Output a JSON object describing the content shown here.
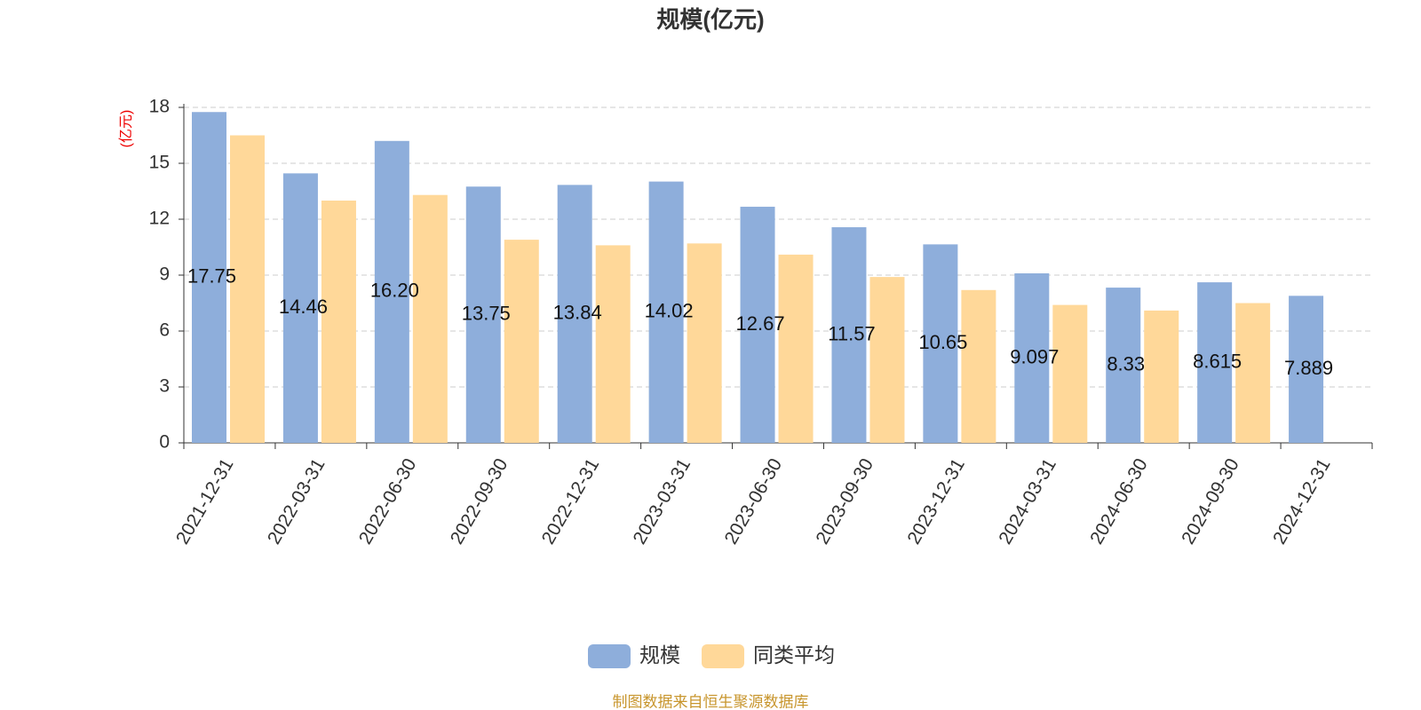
{
  "chart_data": {
    "type": "bar",
    "title": "规模(亿元)",
    "y_axis_label": "(亿元)",
    "categories": [
      "2021-12-31",
      "2022-03-31",
      "2022-06-30",
      "2022-09-30",
      "2022-12-31",
      "2023-03-31",
      "2023-06-30",
      "2023-09-30",
      "2023-12-31",
      "2024-03-31",
      "2024-06-30",
      "2024-09-30",
      "2024-12-31"
    ],
    "series": [
      {
        "name": "规模",
        "color": "#8eaedb",
        "values": [
          17.75,
          14.46,
          16.2,
          13.75,
          13.84,
          14.02,
          12.67,
          11.57,
          10.65,
          9.097,
          8.33,
          8.615,
          7.889
        ],
        "value_labels": [
          "17.75",
          "14.46",
          "16.20",
          "13.75",
          "13.84",
          "14.02",
          "12.67",
          "11.57",
          "10.65",
          "9.097",
          "8.33",
          "8.615",
          "7.889"
        ]
      },
      {
        "name": "同类平均",
        "color": "#ffd899",
        "values": [
          16.5,
          13.0,
          13.3,
          10.9,
          10.6,
          10.7,
          10.1,
          8.9,
          8.2,
          7.4,
          7.1,
          7.5,
          null
        ]
      }
    ],
    "ylim": [
      0,
      18
    ],
    "yticks": [
      0,
      3,
      6,
      9,
      12,
      15,
      18
    ],
    "grid": true,
    "legend": "bottom",
    "footer": "制图数据来自恒生聚源数据库"
  }
}
